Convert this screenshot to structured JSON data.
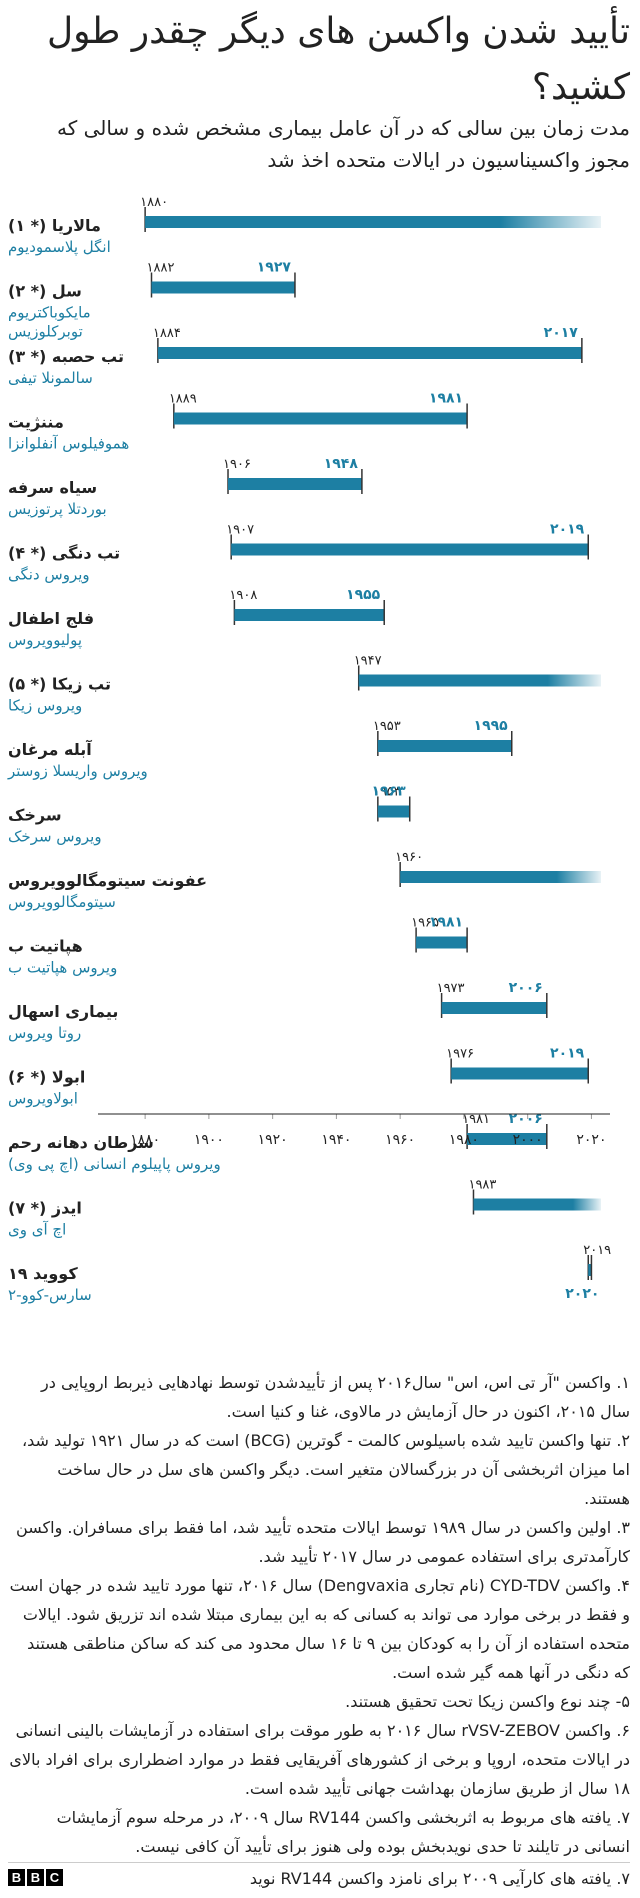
{
  "title": "تأیید شدن واکسن های دیگر چقدر طول کشید؟",
  "subtitle": "مدت زمان بین سالی که در آن عامل بیماری مشخص شده و سالی که مجوز واکسیناسیون در ایالات متحده اخذ شد",
  "colors": {
    "accent": "#1d7fa3",
    "text": "#222222",
    "axis": "#222222",
    "grid": "#999999"
  },
  "chart_data": {
    "type": "range-bar",
    "x_ticks": [
      1880,
      1900,
      1920,
      1940,
      1960,
      1980,
      2000,
      2020
    ],
    "x_tick_labels": [
      "۱۸۸۰",
      "۱۹۰۰",
      "۱۹۲۰",
      "۱۹۴۰",
      "۱۹۶۰",
      "۱۹۸۰",
      "۲۰۰۰",
      "۲۰۲۰"
    ],
    "xlim": [
      1874,
      2023
    ],
    "rows": [
      {
        "disease": "مالاریا (* ۱)",
        "pathogen": [
          "انگل پلاسمودیوم"
        ],
        "start": 1880,
        "start_label": "۱۸۸۰",
        "end": null,
        "end_label": "",
        "ongoing": true
      },
      {
        "disease": "سل (* ۲)",
        "pathogen": [
          "مایکوباکتریوم",
          "توبرکلوزیس"
        ],
        "start": 1882,
        "start_label": "۱۸۸۲",
        "end": 1927,
        "end_label": "۱۹۲۷",
        "ongoing": false
      },
      {
        "disease": "تب حصبه (* ۳)",
        "pathogen": [
          "سالمونلا تیفی"
        ],
        "start": 1884,
        "start_label": "۱۸۸۴",
        "end": 2017,
        "end_label": "۲۰۱۷",
        "ongoing": false
      },
      {
        "disease": "مننژیت",
        "pathogen": [
          "هموفیلوس آنفلوانزا"
        ],
        "start": 1889,
        "start_label": "۱۸۸۹",
        "end": 1981,
        "end_label": "۱۹۸۱",
        "ongoing": false
      },
      {
        "disease": "سیاه سرفه",
        "pathogen": [
          "بوردتلا پرتوزیس"
        ],
        "start": 1906,
        "start_label": "۱۹۰۶",
        "end": 1948,
        "end_label": "۱۹۴۸",
        "ongoing": false
      },
      {
        "disease": "تب دنگی (* ۴)",
        "pathogen": [
          "ویروس دنگی"
        ],
        "start": 1907,
        "start_label": "۱۹۰۷",
        "end": 2019,
        "end_label": "۲۰۱۹",
        "ongoing": false
      },
      {
        "disease": "فلج اطفال",
        "pathogen": [
          "پولیوویروس"
        ],
        "start": 1908,
        "start_label": "۱۹۰۸",
        "end": 1955,
        "end_label": "۱۹۵۵",
        "ongoing": false
      },
      {
        "disease": "تب زیکا (* ۵)",
        "pathogen": [
          "ویروس زیکا"
        ],
        "start": 1947,
        "start_label": "۱۹۴۷",
        "end": null,
        "end_label": "",
        "ongoing": true
      },
      {
        "disease": "آبله مرغان",
        "pathogen": [
          "ویروس واریسلا زوستر"
        ],
        "start": 1953,
        "start_label": "۱۹۵۳",
        "end": 1995,
        "end_label": "۱۹۹۵",
        "ongoing": false
      },
      {
        "disease": "سرخک",
        "pathogen": [
          "ویروس سرخک"
        ],
        "start": 1953,
        "start_label": "۱۹۵۳",
        "end": 1963,
        "end_label": "۱۹۶۳",
        "ongoing": false
      },
      {
        "disease": "عفونت سیتومگالوویروس",
        "pathogen": [
          "سیتومگالوویروس"
        ],
        "start": 1960,
        "start_label": "۱۹۶۰",
        "end": null,
        "end_label": "",
        "ongoing": true
      },
      {
        "disease": "هپاتیت ب",
        "pathogen": [
          "ویروس هپاتیت ب"
        ],
        "start": 1965,
        "start_label": "۱۹۶۵",
        "end": 1981,
        "end_label": "۱۹۸۱",
        "ongoing": false
      },
      {
        "disease": "بیماری اسهال",
        "pathogen": [
          "روتا ویروس"
        ],
        "start": 1973,
        "start_label": "۱۹۷۳",
        "end": 2006,
        "end_label": "۲۰۰۶",
        "ongoing": false
      },
      {
        "disease": "ابولا (* ۶)",
        "pathogen": [
          "ابولاویروس"
        ],
        "start": 1976,
        "start_label": "۱۹۷۶",
        "end": 2019,
        "end_label": "۲۰۱۹",
        "ongoing": false
      },
      {
        "disease": "سرطان دهانه رحم",
        "pathogen": [
          "ویروس پاپیلوم انسانی (اچ پی وی)"
        ],
        "start": 1981,
        "start_label": "۱۹۸۱",
        "end": 2006,
        "end_label": "۲۰۰۶",
        "ongoing": false
      },
      {
        "disease": "ایدز (* ۷)",
        "pathogen": [
          "اچ آی وی"
        ],
        "start": 1983,
        "start_label": "۱۹۸۳",
        "end": null,
        "end_label": "",
        "ongoing": true
      },
      {
        "disease": "کووید ۱۹",
        "pathogen": [
          "سارس-کوو-۲"
        ],
        "start": 2019,
        "start_label": "۲۰۱۹",
        "end": 2020,
        "end_label": "۲۰۲۰",
        "ongoing": false
      }
    ]
  },
  "notes": [
    "۱. واکسن \"آر تی اس، اس\" سال۲۰۱۶ پس از تأییدشدن توسط نهادهایی ذیربط اروپایی در سال ۲۰۱۵، اکنون در حال آزمایش در مالاوی، غنا و کنیا است.",
    "۲. تنها واکسن تایید شده باسیلوس کالمت - گوترین (BCG) است که در سال ۱۹۲۱ تولید شد، اما میزان اثربخشی آن در بزرگسالان متغیر است. دیگر واکسن های سل در حال ساخت هستند.",
    "۳. اولین واکسن در سال ۱۹۸۹ توسط ایالات متحده تأیید شد، اما فقط برای مسافران. واکسن کارآمدتری برای استفاده عمومی در سال ۲۰۱۷ تأیید شد.",
    "۴. واکسن CYD-TDV (نام تجاری Dengvaxia) سال ۲۰۱۶، تنها مورد تایید شده در جهان است و فقط در برخی موارد می تواند به کسانی که به این بیماری مبتلا شده اند تزریق شود. ایالات متحده استفاده از آن را به کودکان بین ۹ تا ۱۶ سال محدود می کند که ساکن مناطقی هستند که دنگی در آنها همه گیر شده است.",
    "۵- چند نوع واکسن زیکا تحت تحقیق هستند.",
    "۶. واکسن rVSV-ZEBOV سال ۲۰۱۶ به طور موقت برای استفاده در آزمایشات بالینی انسانی در ایالات متحده، اروپا و برخی از کشورهای آفریقایی فقط در موارد اضطراری برای افراد بالای ۱۸ سال از طریق سازمان بهداشت جهانی تأیید شده است.",
    "۷. یافته های مربوط به اثربخشی واکسن RV144 سال ۲۰۰۹، در مرحله سوم آزمایشات انسانی در تایلند تا حدی نویدبخش بوده ولی هنوز برای تأیید آن کافی نیست.",
    "۷. یافته های کارآیی ۲۰۰۹ برای نامزد واکسن RV144 نوید"
  ],
  "footer": {
    "logo_letters": [
      "B",
      "B",
      "C"
    ]
  }
}
